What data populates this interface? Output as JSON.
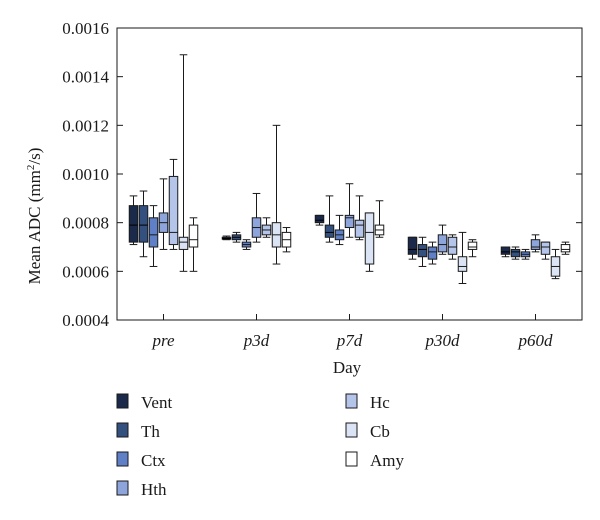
{
  "chart_data": {
    "type": "box",
    "ylabel": "Mean ADC (mm²/s)",
    "xlabel": "Day",
    "ylim": [
      0.0004,
      0.0016
    ],
    "yticks": [
      "0.0004",
      "0.0006",
      "0.0008",
      "0.0010",
      "0.0012",
      "0.0014",
      "0.0016"
    ],
    "ytick_values": [
      0.0004,
      0.0006,
      0.0008,
      0.001,
      0.0012,
      0.0014,
      0.0016
    ],
    "categories": [
      "pre",
      "p3d",
      "p7d",
      "p30d",
      "p60d"
    ],
    "legend_placement": "bottom",
    "series": [
      {
        "name": "Vent",
        "color": "#1b2a4a",
        "boxes": [
          {
            "min": 0.00071,
            "q1": 0.00072,
            "median": 0.00079,
            "q3": 0.00087,
            "max": 0.00091
          },
          {
            "min": 0.00073,
            "q1": 0.000732,
            "median": 0.000735,
            "q3": 0.00074,
            "max": 0.000745
          },
          {
            "min": 0.00079,
            "q1": 0.0008,
            "median": 0.00081,
            "q3": 0.00083,
            "max": 0.00083
          },
          {
            "min": 0.00065,
            "q1": 0.00067,
            "median": 0.00069,
            "q3": 0.00074,
            "max": 0.00074
          },
          {
            "min": 0.00066,
            "q1": 0.00067,
            "median": 0.00068,
            "q3": 0.0007,
            "max": 0.0007
          }
        ]
      },
      {
        "name": "Th",
        "color": "#34507f",
        "boxes": [
          {
            "min": 0.00066,
            "q1": 0.00072,
            "median": 0.00079,
            "q3": 0.00087,
            "max": 0.00093
          },
          {
            "min": 0.00072,
            "q1": 0.00073,
            "median": 0.00074,
            "q3": 0.00075,
            "max": 0.00076
          },
          {
            "min": 0.00072,
            "q1": 0.00074,
            "median": 0.00076,
            "q3": 0.00079,
            "max": 0.00091
          },
          {
            "min": 0.00062,
            "q1": 0.00066,
            "median": 0.00069,
            "q3": 0.00071,
            "max": 0.00074
          },
          {
            "min": 0.00065,
            "q1": 0.00066,
            "median": 0.00068,
            "q3": 0.00069,
            "max": 0.0007
          }
        ]
      },
      {
        "name": "Ctx",
        "color": "#5f80c6",
        "boxes": [
          {
            "min": 0.00062,
            "q1": 0.0007,
            "median": 0.00075,
            "q3": 0.00082,
            "max": 0.00087
          },
          {
            "min": 0.00069,
            "q1": 0.0007,
            "median": 0.00071,
            "q3": 0.00072,
            "max": 0.00073
          },
          {
            "min": 0.00071,
            "q1": 0.00073,
            "median": 0.00075,
            "q3": 0.00077,
            "max": 0.00083
          },
          {
            "min": 0.00063,
            "q1": 0.00065,
            "median": 0.00068,
            "q3": 0.0007,
            "max": 0.00072
          },
          {
            "min": 0.00065,
            "q1": 0.00066,
            "median": 0.00067,
            "q3": 0.00068,
            "max": 0.00069
          }
        ]
      },
      {
        "name": "Hth",
        "color": "#8ea5dc",
        "boxes": [
          {
            "min": 0.00069,
            "q1": 0.00076,
            "median": 0.0008,
            "q3": 0.00084,
            "max": 0.00098
          },
          {
            "min": 0.00072,
            "q1": 0.00074,
            "median": 0.00078,
            "q3": 0.00082,
            "max": 0.00092
          },
          {
            "min": 0.00074,
            "q1": 0.00078,
            "median": 0.00082,
            "q3": 0.00083,
            "max": 0.00096
          },
          {
            "min": 0.00067,
            "q1": 0.00068,
            "median": 0.00071,
            "q3": 0.00075,
            "max": 0.00079
          },
          {
            "min": 0.00068,
            "q1": 0.00069,
            "median": 0.0007,
            "q3": 0.00073,
            "max": 0.00075
          }
        ]
      },
      {
        "name": "Hc",
        "color": "#b4c5e9",
        "boxes": [
          {
            "min": 0.00069,
            "q1": 0.00071,
            "median": 0.00076,
            "q3": 0.00099,
            "max": 0.00106
          },
          {
            "min": 0.00074,
            "q1": 0.00075,
            "median": 0.00077,
            "q3": 0.00079,
            "max": 0.00082
          },
          {
            "min": 0.00073,
            "q1": 0.00074,
            "median": 0.00079,
            "q3": 0.00081,
            "max": 0.00091
          },
          {
            "min": 0.00065,
            "q1": 0.00067,
            "median": 0.0007,
            "q3": 0.00074,
            "max": 0.00075
          },
          {
            "min": 0.00065,
            "q1": 0.00067,
            "median": 0.0007,
            "q3": 0.00072,
            "max": 0.00072
          }
        ]
      },
      {
        "name": "Cb",
        "color": "#dbe4f4",
        "boxes": [
          {
            "min": 0.0006,
            "q1": 0.00069,
            "median": 0.00072,
            "q3": 0.00074,
            "max": 0.00149
          },
          {
            "min": 0.00063,
            "q1": 0.0007,
            "median": 0.00075,
            "q3": 0.0008,
            "max": 0.0012
          },
          {
            "min": 0.0006,
            "q1": 0.00063,
            "median": 0.00076,
            "q3": 0.00084,
            "max": 0.00084
          },
          {
            "min": 0.00055,
            "q1": 0.0006,
            "median": 0.00062,
            "q3": 0.00066,
            "max": 0.00076
          },
          {
            "min": 0.00057,
            "q1": 0.00058,
            "median": 0.00062,
            "q3": 0.00066,
            "max": 0.00069
          }
        ]
      },
      {
        "name": "Amy",
        "color": "#ffffff",
        "boxes": [
          {
            "min": 0.0006,
            "q1": 0.0007,
            "median": 0.00073,
            "q3": 0.00079,
            "max": 0.00082
          },
          {
            "min": 0.00068,
            "q1": 0.0007,
            "median": 0.00073,
            "q3": 0.00076,
            "max": 0.00078
          },
          {
            "min": 0.00074,
            "q1": 0.00075,
            "median": 0.00077,
            "q3": 0.00079,
            "max": 0.00089
          },
          {
            "min": 0.00066,
            "q1": 0.00069,
            "median": 0.0007,
            "q3": 0.00072,
            "max": 0.00073
          },
          {
            "min": 0.00067,
            "q1": 0.00068,
            "median": 0.00069,
            "q3": 0.00071,
            "max": 0.00072
          }
        ]
      }
    ]
  }
}
